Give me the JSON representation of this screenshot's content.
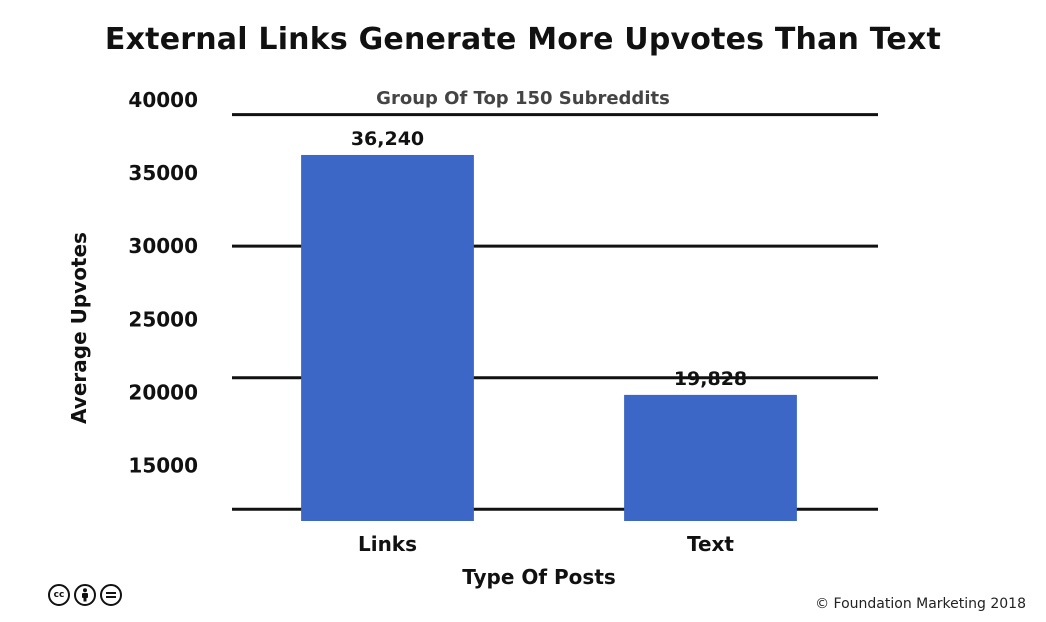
{
  "chart_data": {
    "type": "bar",
    "title": "External Links Generate More Upvotes Than Text",
    "subtitle": "Group Of Top 150 Subreddits",
    "xlabel": "Type Of Posts",
    "ylabel": "Average Upvotes",
    "categories": [
      "Links",
      "Text"
    ],
    "values": [
      36240,
      19828
    ],
    "data_labels": [
      "36,240",
      "19,828"
    ],
    "yticks": [
      40000,
      35000,
      30000,
      25000,
      20000,
      15000
    ],
    "ytick_labels": [
      "40000",
      "35000",
      "30000",
      "25000",
      "20000",
      "15000"
    ],
    "gridlines": [
      39000,
      30000,
      21000,
      12000
    ],
    "ylim": [
      11200,
      40000
    ],
    "bar_color": "#3d67c6",
    "grid": true
  },
  "footer": {
    "license_icons": [
      "cc-icon",
      "by-icon",
      "nd-icon"
    ],
    "copyright": "© Foundation Marketing 2018"
  }
}
